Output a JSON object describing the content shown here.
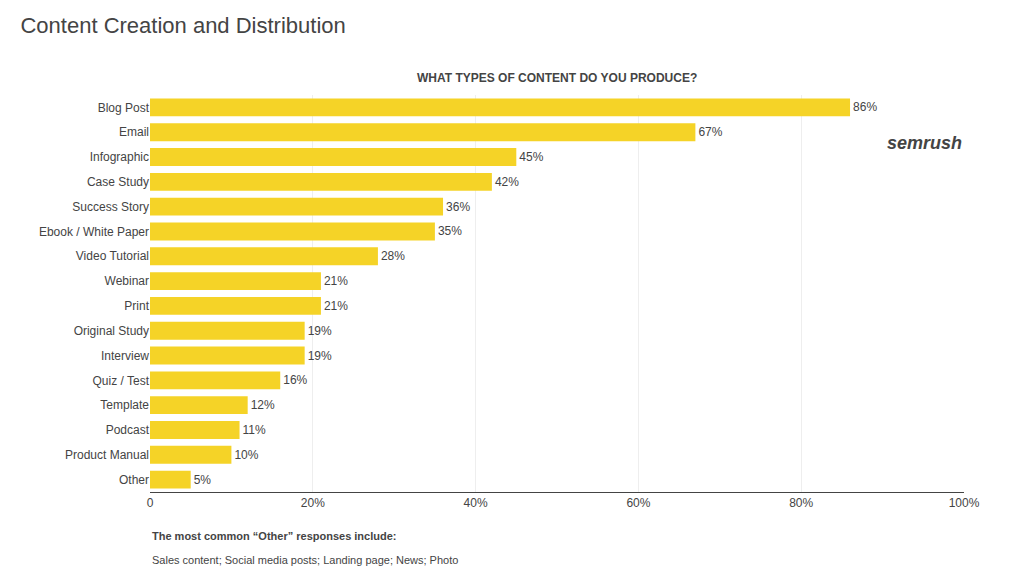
{
  "chart_data": {
    "type": "bar",
    "orientation": "horizontal",
    "title": "Content Creation and Distribution",
    "subtitle": "WHAT TYPES OF CONTENT DO YOU PRODUCE?",
    "categories": [
      "Blog Post",
      "Email",
      "Infographic",
      "Case Study",
      "Success Story",
      "Ebook / White Paper",
      "Video Tutorial",
      "Webinar",
      "Print",
      "Original Study",
      "Interview",
      "Quiz / Test",
      "Template",
      "Podcast",
      "Product Manual",
      "Other"
    ],
    "values": [
      86,
      67,
      45,
      42,
      36,
      35,
      28,
      21,
      21,
      19,
      19,
      16,
      12,
      11,
      10,
      5
    ],
    "value_labels": [
      "86%",
      "67%",
      "45%",
      "42%",
      "36%",
      "35%",
      "28%",
      "21%",
      "21%",
      "19%",
      "19%",
      "16%",
      "12%",
      "11%",
      "10%",
      "5%"
    ],
    "data_labels": true,
    "color": "#f5d327",
    "xlim": [
      0,
      100
    ],
    "xticks": [
      0,
      {
        "value": 20,
        "label": "20%"
      },
      {
        "value": 40,
        "label": "40%"
      },
      {
        "value": 60,
        "label": "60%"
      },
      {
        "value": 80,
        "label": "80%"
      },
      {
        "value": 100,
        "label": "100%"
      }
    ],
    "grid": true,
    "annotations": [
      "The most common “Other” responses include:",
      "Sales content; Social media posts; Landing page; News; Photo",
      "semrush"
    ]
  }
}
